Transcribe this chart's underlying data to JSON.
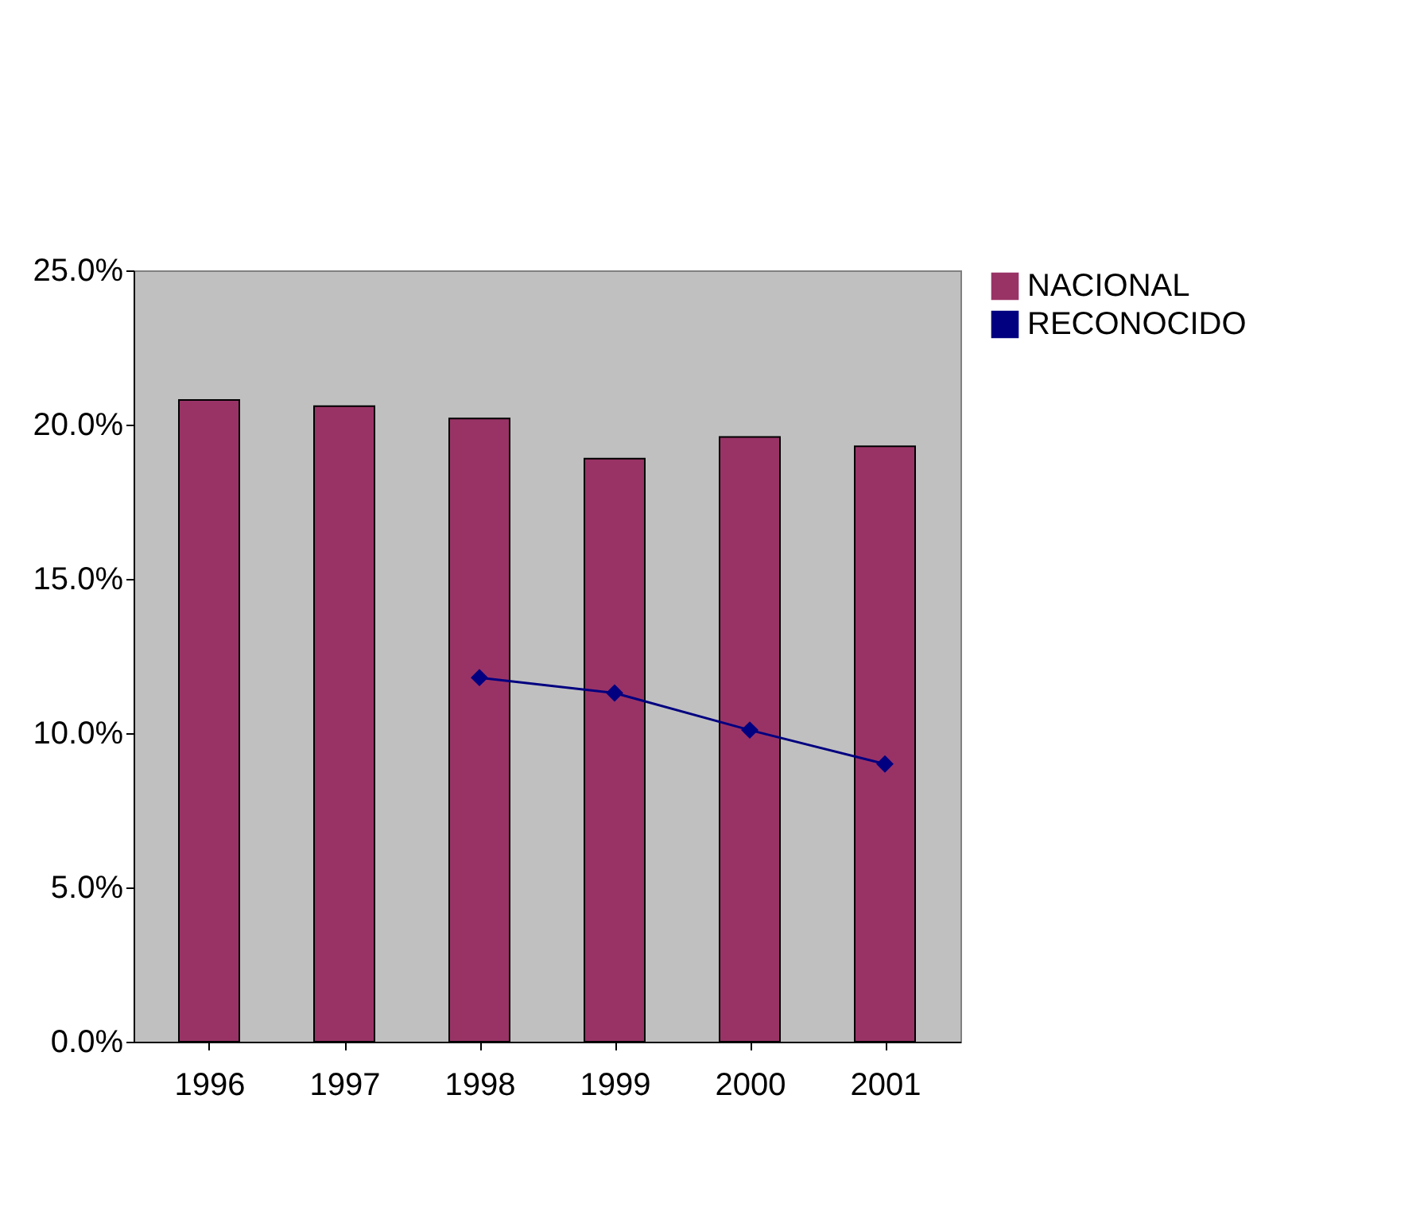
{
  "chart_data": {
    "type": "bar",
    "categories": [
      "1996",
      "1997",
      "1998",
      "1999",
      "2000",
      "2001"
    ],
    "series": [
      {
        "name": "NACIONAL",
        "color": "#993366",
        "values": [
          20.8,
          20.6,
          20.2,
          18.9,
          19.6,
          19.3
        ]
      },
      {
        "name": "RECONOCIDO",
        "type": "line",
        "color": "#000080",
        "marker": "diamond",
        "values": [
          null,
          null,
          11.8,
          11.3,
          10.1,
          9.0
        ]
      }
    ],
    "ylim": [
      0,
      25
    ],
    "yticks": [
      {
        "value": 0,
        "label": "0.0%"
      },
      {
        "value": 5,
        "label": "5.0%"
      },
      {
        "value": 10,
        "label": "10.0%"
      },
      {
        "value": 15,
        "label": "15.0%"
      },
      {
        "value": 20,
        "label": "20.0%"
      },
      {
        "value": 25,
        "label": "25.0%"
      }
    ],
    "grid": false,
    "legend": "right"
  }
}
